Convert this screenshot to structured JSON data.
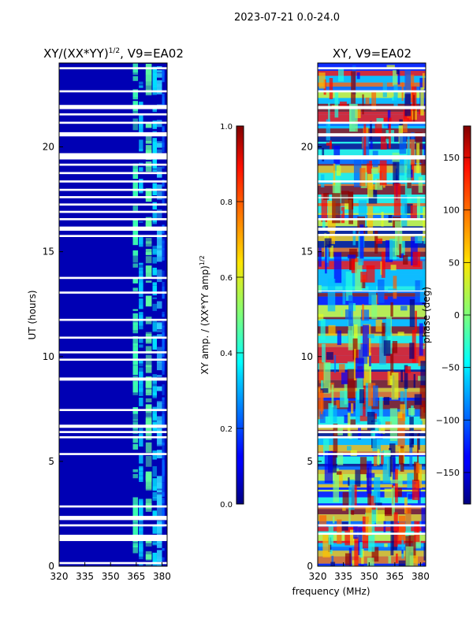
{
  "figure": {
    "suptitle": "2023-07-21 0.0-24.0",
    "xlabel": "frequency (MHz)"
  },
  "chart_data": [
    {
      "type": "heatmap",
      "title_main": "XY/(XX*YY)",
      "title_sup": "1/2",
      "title_tail": ", V9=EA02",
      "ylabel": "UT (hours)",
      "xlim": [
        320,
        383
      ],
      "ylim": [
        0,
        24
      ],
      "xticks": [
        320,
        335,
        350,
        365,
        380
      ],
      "yticks": [
        0,
        5,
        10,
        15,
        20
      ],
      "colorbar": {
        "label": "XY amp. / (XX*YY amp)",
        "label_sup": "1/2",
        "range": [
          0.0,
          1.0
        ],
        "ticks": [
          "0.0",
          "0.2",
          "0.4",
          "0.6",
          "0.8",
          "1.0"
        ],
        "tick_values": [
          0.0,
          0.2,
          0.4,
          0.6,
          0.8,
          1.0
        ]
      },
      "gap_bands_hours": [
        [
          0.1,
          0.2
        ],
        [
          1.2,
          1.5
        ],
        [
          1.9,
          2.0
        ],
        [
          2.2,
          2.4
        ],
        [
          2.8,
          2.9
        ],
        [
          5.3,
          5.4
        ],
        [
          6.1,
          6.2
        ],
        [
          6.35,
          6.45
        ],
        [
          6.6,
          6.75
        ],
        [
          7.4,
          7.5
        ],
        [
          8.85,
          9.0
        ],
        [
          9.8,
          9.9
        ],
        [
          10.15,
          10.25
        ],
        [
          10.85,
          10.95
        ],
        [
          11.7,
          11.8
        ],
        [
          13.0,
          13.1
        ],
        [
          13.7,
          13.8
        ],
        [
          15.7,
          15.8
        ],
        [
          16.0,
          16.2
        ],
        [
          16.5,
          16.6
        ],
        [
          16.85,
          16.95
        ],
        [
          17.2,
          17.3
        ],
        [
          17.55,
          17.65
        ],
        [
          17.9,
          18.0
        ],
        [
          18.3,
          18.4
        ],
        [
          18.7,
          18.8
        ],
        [
          19.1,
          19.2
        ],
        [
          19.4,
          19.7
        ],
        [
          20.5,
          20.7
        ],
        [
          21.1,
          21.2
        ],
        [
          21.5,
          21.6
        ],
        [
          21.8,
          22.0
        ],
        [
          22.6,
          22.7
        ],
        [
          23.7,
          23.8
        ]
      ]
    },
    {
      "type": "heatmap",
      "title": "XY, V9=EA02",
      "ylabel": "",
      "xlim": [
        320,
        383
      ],
      "ylim": [
        0,
        24
      ],
      "xticks": [
        320,
        335,
        350,
        365,
        380
      ],
      "yticks": [
        0,
        5,
        10,
        15,
        20
      ],
      "colorbar": {
        "label": "phase (deg)",
        "range": [
          -180,
          180
        ],
        "ticks": [
          "−150",
          "−100",
          "−50",
          "0",
          "50",
          "100",
          "150"
        ],
        "tick_values": [
          -150,
          -100,
          -50,
          0,
          50,
          100,
          150
        ]
      },
      "gap_bands_hours": [
        [
          1.5,
          1.6
        ],
        [
          1.9,
          2.0
        ],
        [
          2.8,
          2.9
        ],
        [
          5.3,
          5.4
        ],
        [
          6.1,
          6.2
        ],
        [
          6.35,
          6.45
        ],
        [
          6.6,
          6.75
        ],
        [
          13.1,
          13.15
        ],
        [
          15.75,
          15.85
        ],
        [
          16.0,
          16.15
        ],
        [
          16.5,
          16.6
        ],
        [
          17.55,
          17.6
        ],
        [
          18.3,
          18.4
        ],
        [
          19.4,
          19.6
        ],
        [
          20.5,
          20.65
        ],
        [
          21.1,
          21.2
        ],
        [
          21.8,
          21.95
        ],
        [
          22.6,
          22.7
        ],
        [
          23.7,
          23.8
        ]
      ]
    }
  ]
}
